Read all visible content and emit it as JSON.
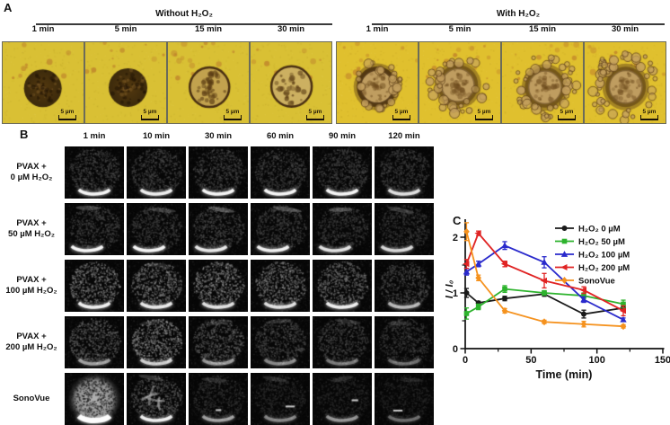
{
  "panel_a": {
    "label": "A",
    "groups": [
      {
        "title": "Without H₂O₂",
        "times": [
          "1 min",
          "5 min",
          "15 min",
          "30 min"
        ]
      },
      {
        "title": "With H₂O₂",
        "times": [
          "1 min",
          "5 min",
          "15 min",
          "30 min"
        ]
      }
    ],
    "scale_bar_label": "5 µm",
    "colors": {
      "background": "#d9c034",
      "background_right": "#e0c02e",
      "particle_dark": "#46300f",
      "particle_light": "#c8a85c",
      "debris": "#b4692a"
    }
  },
  "panel_b": {
    "label": "B",
    "column_headers": [
      "1 min",
      "10 min",
      "30 min",
      "60 min",
      "90 min",
      "120 min"
    ],
    "rows": [
      {
        "label": [
          "PVAX +",
          "0 µM H₂O₂"
        ]
      },
      {
        "label": [
          "PVAX +",
          "50 µM H₂O₂"
        ]
      },
      {
        "label": [
          "PVAX +",
          "100 µM H₂O₂"
        ]
      },
      {
        "label": [
          "PVAX +",
          "200 µM H₂O₂"
        ]
      },
      {
        "label": [
          "SonoVue",
          ""
        ]
      }
    ]
  },
  "panel_c": {
    "label": "C"
  },
  "chart_data": {
    "type": "line",
    "x": [
      1,
      10,
      30,
      60,
      90,
      120
    ],
    "series": [
      {
        "name": "H₂O₂ 0 µM",
        "color": "#1a1a1a",
        "marker": "circle",
        "values": [
          1.0,
          0.82,
          0.9,
          0.98,
          0.62,
          0.73
        ],
        "errors": [
          0.08,
          0.03,
          0.04,
          0.04,
          0.07,
          0.04
        ]
      },
      {
        "name": "H₂O₂ 50 µM",
        "color": "#2db32d",
        "marker": "square",
        "values": [
          0.63,
          0.75,
          1.07,
          1.0,
          0.95,
          0.8
        ],
        "errors": [
          0.1,
          0.05,
          0.06,
          0.04,
          0.05,
          0.07
        ]
      },
      {
        "name": "H₂O₂ 100 µM",
        "color": "#2a2acc",
        "marker": "triangle-up",
        "values": [
          1.38,
          1.52,
          1.85,
          1.55,
          0.88,
          0.52
        ],
        "errors": [
          0.06,
          0.05,
          0.07,
          0.1,
          0.05,
          0.03
        ]
      },
      {
        "name": "H₂O₂ 200 µM",
        "color": "#e02424",
        "marker": "triangle-left",
        "values": [
          1.52,
          2.07,
          1.52,
          1.22,
          1.05,
          0.68
        ],
        "errors": [
          0.08,
          0.04,
          0.05,
          0.13,
          0.06,
          0.09
        ]
      },
      {
        "name": "SonoVue",
        "color": "#f5921e",
        "marker": "diamond",
        "values": [
          2.1,
          1.27,
          0.68,
          0.48,
          0.44,
          0.4
        ],
        "errors": [
          0.16,
          0.05,
          0.04,
          0.03,
          0.05,
          0.03
        ]
      }
    ],
    "xlabel": "Time (min)",
    "ylabel": "I / I₀",
    "xticks": [
      0,
      50,
      100,
      150
    ],
    "yticks": [
      0,
      1,
      2
    ],
    "x_minor_ticks": [
      25,
      75,
      125
    ],
    "y_minor_ticks": [
      0.5,
      1.5
    ],
    "xlim": [
      0,
      150
    ],
    "ylim": [
      0,
      2.32
    ],
    "legend_position": "top-right",
    "grid": false
  }
}
